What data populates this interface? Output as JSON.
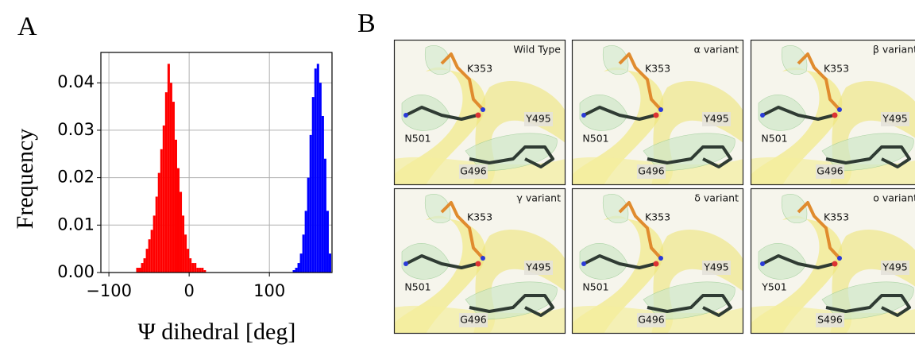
{
  "chart_data": {
    "type": "histogram",
    "panel_label": "A",
    "x_label": "Ψ dihedral [deg]",
    "y_label": "Frequency",
    "xlim": [
      -110,
      178
    ],
    "ylim": [
      0,
      0.0464
    ],
    "xticks": [
      {
        "value": -100,
        "label": "−100"
      },
      0,
      100
    ],
    "yticks": [
      {
        "value": 0,
        "label": "0.00"
      },
      {
        "value": 0.01,
        "label": "0.01"
      },
      {
        "value": 0.02,
        "label": "0.02"
      },
      {
        "value": 0.03,
        "label": "0.03"
      },
      {
        "value": 0.04,
        "label": "0.04"
      }
    ],
    "grid": true,
    "series": [
      {
        "color": "#ff0000",
        "bins": [
          -66,
          -63,
          -60,
          -57,
          -54,
          -51,
          -48,
          -45,
          -42,
          -39,
          -36,
          -33,
          -30,
          -27,
          -24,
          -21,
          -18,
          -15,
          -12,
          -9,
          -6,
          -3,
          0,
          3,
          6,
          9,
          12,
          15,
          18,
          21
        ],
        "values": [
          0.001,
          0.001,
          0.002,
          0.003,
          0.005,
          0.007,
          0.009,
          0.012,
          0.016,
          0.021,
          0.026,
          0.031,
          0.038,
          0.044,
          0.04,
          0.036,
          0.028,
          0.022,
          0.017,
          0.012,
          0.008,
          0.005,
          0.003,
          0.002,
          0.002,
          0.001,
          0.001,
          0.001,
          0.0005
        ]
      },
      {
        "color": "#0000ff",
        "bins": [
          129,
          132,
          135,
          138,
          141,
          144,
          147,
          150,
          153,
          156,
          159,
          162,
          165,
          168,
          171,
          174,
          177
        ],
        "values": [
          0.0005,
          0.001,
          0.002,
          0.004,
          0.008,
          0.013,
          0.02,
          0.029,
          0.037,
          0.043,
          0.044,
          0.04,
          0.033,
          0.024,
          0.013,
          0.004
        ]
      }
    ]
  },
  "structures": {
    "panel_label": "B",
    "panels": [
      {
        "title": "Wild Type",
        "labels": [
          "K353",
          "Y495",
          "N501",
          "G496"
        ]
      },
      {
        "title": "α variant",
        "labels": [
          "K353",
          "Y495",
          "N501",
          "G496"
        ]
      },
      {
        "title": "β variant",
        "labels": [
          "K353",
          "Y495",
          "N501",
          "G496"
        ]
      },
      {
        "title": "γ variant",
        "labels": [
          "K353",
          "Y495",
          "N501",
          "G496"
        ]
      },
      {
        "title": "δ variant",
        "labels": [
          "K353",
          "Y495",
          "N501",
          "G496"
        ]
      },
      {
        "title": "o variant",
        "labels": [
          "K353",
          "Y495",
          "Y501",
          "S496"
        ]
      }
    ]
  }
}
